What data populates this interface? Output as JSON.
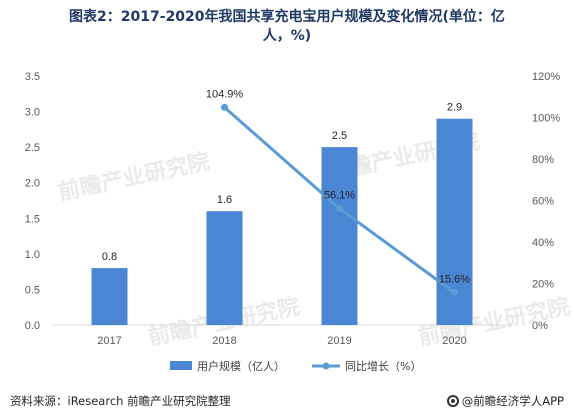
{
  "title_line1": "图表2：2017-2020年我国共享充电宝用户规模及变化情况(单位：亿",
  "title_line2": "人，%)",
  "watermark": "前瞻产业研究院",
  "footer": {
    "source": "资料来源：iResearch 前瞻产业研究院整理",
    "brand": "@前瞻经济学人APP"
  },
  "colors": {
    "bar": "#4a86d4",
    "line": "#5b9bd5",
    "title": "#1f3864"
  },
  "chart_data": {
    "type": "bar",
    "categories": [
      "2017",
      "2018",
      "2019",
      "2020"
    ],
    "series": [
      {
        "name": "用户规模（亿人）",
        "type": "bar",
        "axis": "left",
        "values": [
          0.8,
          1.6,
          2.5,
          2.9
        ],
        "labels": [
          "0.8",
          "1.6",
          "2.5",
          "2.9"
        ]
      },
      {
        "name": "同比增长（%）",
        "type": "line",
        "axis": "right",
        "x": [
          "2018",
          "2019",
          "2020"
        ],
        "values": [
          104.9,
          56.1,
          15.6
        ],
        "labels": [
          "104.9%",
          "56.1%",
          "15.6%"
        ]
      }
    ],
    "y_left": {
      "min": 0,
      "max": 3.5,
      "ticks": [
        "0.0",
        "0.5",
        "1.0",
        "1.5",
        "2.0",
        "2.5",
        "3.0",
        "3.5"
      ]
    },
    "y_right": {
      "min": 0,
      "max": 120,
      "ticks": [
        "0%",
        "20%",
        "40%",
        "60%",
        "80%",
        "100%",
        "120%"
      ]
    },
    "grid": false,
    "legend": "bottom"
  }
}
